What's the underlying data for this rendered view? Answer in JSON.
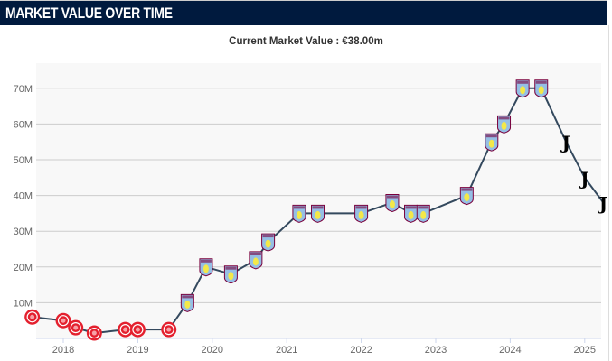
{
  "header": {
    "title": "MARKET VALUE OVER TIME"
  },
  "subtitle": "Current Market Value : €38.00m",
  "colors": {
    "header_bg": "#001a3e",
    "line": "#34495e",
    "plot_bg": "#f8f8f8",
    "girona": "#e4202e",
    "villa_shield": "#95bfe5",
    "villa_claret": "#7a003c",
    "juve": "#000000"
  },
  "chart_data": {
    "type": "line",
    "title": "",
    "xlabel": "",
    "ylabel": "",
    "ylim": [
      0,
      70000000
    ],
    "y_ticks": [
      "10M",
      "20M",
      "30M",
      "40M",
      "50M",
      "60M",
      "70M"
    ],
    "x_ticks": [
      "2018",
      "2019",
      "2020",
      "2021",
      "2022",
      "2023",
      "2024",
      "2025"
    ],
    "grid": true,
    "points": [
      {
        "date": "2017-08",
        "value": 6000000,
        "club_icon": "girona-crest"
      },
      {
        "date": "2018-01",
        "value": 5000000,
        "club_icon": "girona-crest"
      },
      {
        "date": "2018-03",
        "value": 3000000,
        "club_icon": "girona-crest"
      },
      {
        "date": "2018-06",
        "value": 1500000,
        "club_icon": "girona-crest"
      },
      {
        "date": "2018-11",
        "value": 2500000,
        "club_icon": "girona-crest"
      },
      {
        "date": "2019-01",
        "value": 2500000,
        "club_icon": "girona-crest"
      },
      {
        "date": "2019-06",
        "value": 2500000,
        "club_icon": "girona-crest"
      },
      {
        "date": "2019-09",
        "value": 10000000,
        "club_icon": "aston-villa-crest"
      },
      {
        "date": "2019-12",
        "value": 20000000,
        "club_icon": "aston-villa-crest"
      },
      {
        "date": "2020-04",
        "value": 18000000,
        "club_icon": "aston-villa-crest"
      },
      {
        "date": "2020-08",
        "value": 22000000,
        "club_icon": "aston-villa-crest"
      },
      {
        "date": "2020-10",
        "value": 27000000,
        "club_icon": "aston-villa-crest"
      },
      {
        "date": "2021-03",
        "value": 35000000,
        "club_icon": "aston-villa-crest"
      },
      {
        "date": "2021-06",
        "value": 35000000,
        "club_icon": "aston-villa-crest"
      },
      {
        "date": "2022-01",
        "value": 35000000,
        "club_icon": "aston-villa-crest"
      },
      {
        "date": "2022-06",
        "value": 38000000,
        "club_icon": "aston-villa-crest"
      },
      {
        "date": "2022-09",
        "value": 35000000,
        "club_icon": "aston-villa-crest"
      },
      {
        "date": "2022-11",
        "value": 35000000,
        "club_icon": "aston-villa-crest"
      },
      {
        "date": "2023-06",
        "value": 40000000,
        "club_icon": "aston-villa-crest"
      },
      {
        "date": "2023-10",
        "value": 55000000,
        "club_icon": "aston-villa-crest"
      },
      {
        "date": "2023-12",
        "value": 60000000,
        "club_icon": "aston-villa-crest"
      },
      {
        "date": "2024-03",
        "value": 70000000,
        "club_icon": "aston-villa-crest"
      },
      {
        "date": "2024-06",
        "value": 70000000,
        "club_icon": "aston-villa-crest"
      },
      {
        "date": "2024-10",
        "value": 55000000,
        "club_icon": "juventus-crest"
      },
      {
        "date": "2025-01",
        "value": 45000000,
        "club_icon": "juventus-crest"
      },
      {
        "date": "2025-04",
        "value": 38000000,
        "club_icon": "juventus-crest"
      }
    ]
  }
}
